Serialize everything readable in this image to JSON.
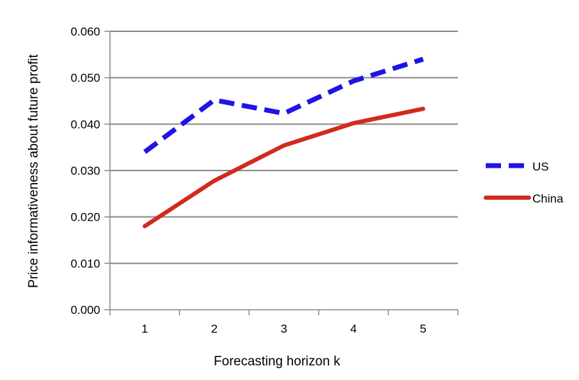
{
  "chart_data": {
    "type": "line",
    "title": "",
    "xlabel": "Forecasting horizon k",
    "ylabel": "Price informativeness about future profit",
    "categories": [
      "1",
      "2",
      "3",
      "4",
      "5"
    ],
    "yticks": [
      "0.000",
      "0.010",
      "0.020",
      "0.030",
      "0.040",
      "0.050",
      "0.060"
    ],
    "ylim": [
      0,
      0.06
    ],
    "grid": true,
    "legend_position": "right",
    "series": [
      {
        "name": "US",
        "values": [
          0.034,
          0.0452,
          0.0423,
          0.0493,
          0.054
        ],
        "color": "#1f14e6",
        "style": "dashed"
      },
      {
        "name": "China",
        "values": [
          0.018,
          0.0278,
          0.0354,
          0.0402,
          0.0433
        ],
        "color": "#d12a1f",
        "style": "solid"
      }
    ]
  }
}
